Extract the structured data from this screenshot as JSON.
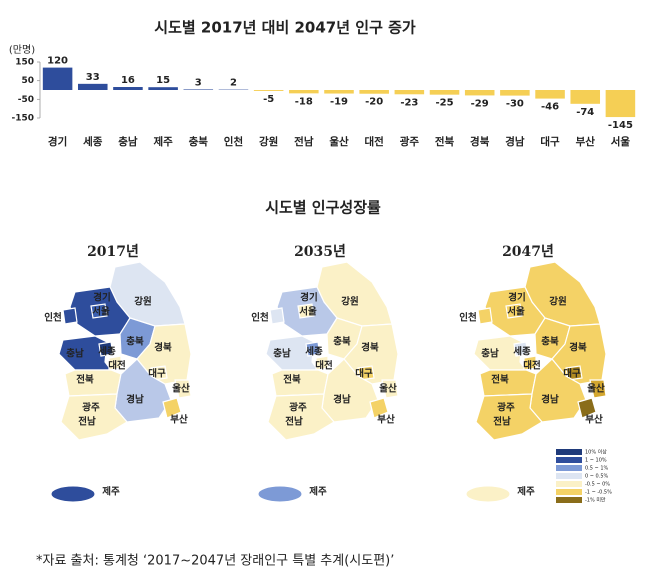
{
  "chart_data": {
    "type": "bar",
    "title": "시도별  2017년 대비 2047년 인구 증가",
    "y_label": "(만명)",
    "categories": [
      "경기",
      "세종",
      "충남",
      "제주",
      "충북",
      "인천",
      "강원",
      "전남",
      "울산",
      "대전",
      "광주",
      "전북",
      "경북",
      "경남",
      "대구",
      "부산",
      "서울"
    ],
    "values": [
      120,
      33,
      16,
      15,
      3,
      2,
      -5,
      -18,
      -19,
      -20,
      -23,
      -25,
      -29,
      -30,
      -46,
      -74,
      -145
    ],
    "color": "#2e4d9c",
    "negative_color": "#f5cf55",
    "ylim": [
      -150,
      150
    ],
    "yticks": [
      150,
      50,
      -50,
      -150
    ]
  },
  "maps": {
    "title": "시도별 인구성장률",
    "regions": [
      "강원",
      "경기",
      "서울",
      "인천",
      "충북",
      "충남",
      "세종",
      "대전",
      "경북",
      "대구",
      "전북",
      "광주",
      "경남",
      "울산",
      "전남",
      "부산",
      "제주"
    ],
    "panels": [
      {
        "year": "2017년",
        "fills": [
          "#dde5f2",
          "#2e4d9c",
          "#3b5fb0",
          "#2e4d9c",
          "#7d9ad6",
          "#2e4d9c",
          "#1f3a7a",
          "#fbf1c7",
          "#fbf1c7",
          "#fbf1c7",
          "#fbf1c7",
          "#fbf1c7",
          "#b9c8e8",
          "#fbf1c7",
          "#fbf1c7",
          "#f4d266",
          "#2e4d9c"
        ]
      },
      {
        "year": "2035년",
        "fills": [
          "#fbf1c7",
          "#b9c8e8",
          "#fbf1c7",
          "#dde5f2",
          "#fbf1c7",
          "#dde5f2",
          "#7d9ad6",
          "#fbf1c7",
          "#fbf1c7",
          "#f4d266",
          "#fbf1c7",
          "#fbf1c7",
          "#fbf1c7",
          "#fbf1c7",
          "#fbf1c7",
          "#f4d266",
          "#7d9ad6"
        ]
      },
      {
        "year": "2047년",
        "fills": [
          "#f4d266",
          "#f4d266",
          "#f4d266",
          "#f4d266",
          "#f4d266",
          "#fbf1c7",
          "#dde5f2",
          "#f4d266",
          "#f4d266",
          "#b08a20",
          "#f4d266",
          "#f4d266",
          "#f4d266",
          "#d4a730",
          "#f4d266",
          "#8a6d1a",
          "#fbf1c7"
        ]
      }
    ],
    "legend": [
      {
        "label": "10% 이상",
        "color": "#1f3a7a"
      },
      {
        "label": "1 ~ 10%",
        "color": "#2e4d9c"
      },
      {
        "label": "0.5 ~ 1%",
        "color": "#7d9ad6"
      },
      {
        "label": "0 ~ 0.5%",
        "color": "#dde5f2"
      },
      {
        "label": "-0.5 ~ 0%",
        "color": "#fbf1c7"
      },
      {
        "label": "-1 ~ -0.5%",
        "color": "#f4d266"
      },
      {
        "label": "-1% 미만",
        "color": "#8a6d1a"
      }
    ]
  },
  "source": "*자료 출처: 통계청 ‘2017~2047년 장래인구 특별 추계(시도편)’"
}
